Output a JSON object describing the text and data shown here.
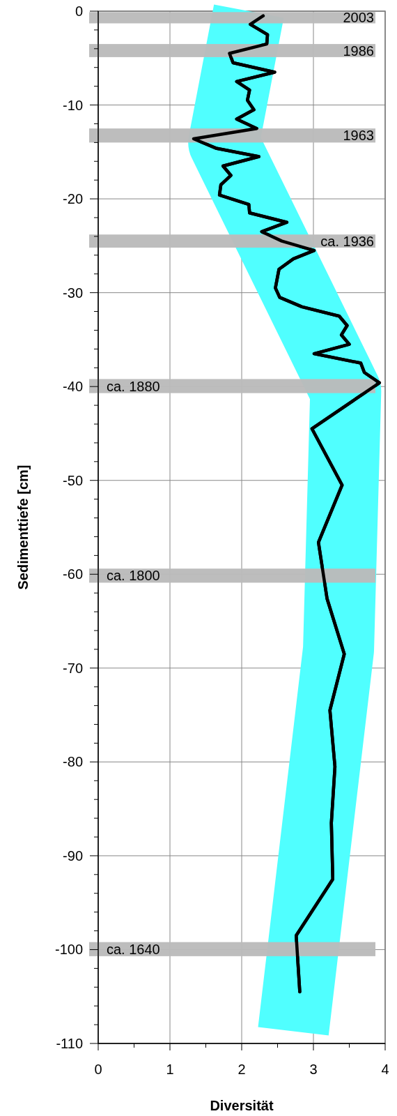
{
  "chart_data": {
    "type": "line",
    "xlabel": "Diversität",
    "ylabel": "Sedimenttiefe [cm]",
    "xlim": [
      0,
      4
    ],
    "xticks": [
      0,
      {
        "value": 0.5,
        "label": null
      },
      1,
      {
        "value": 1.5,
        "label": null
      },
      2,
      {
        "value": 2.5,
        "label": null
      },
      3,
      {
        "value": 3.5,
        "label": null
      },
      4
    ],
    "ylim": [
      -110,
      0
    ],
    "yticks": [
      -110,
      {
        "value": -108,
        "label": null
      },
      {
        "value": -106,
        "label": null
      },
      {
        "value": -104,
        "label": null
      },
      {
        "value": -102,
        "label": null
      },
      -100,
      {
        "value": -98,
        "label": null
      },
      {
        "value": -96,
        "label": null
      },
      {
        "value": -94,
        "label": null
      },
      {
        "value": -92,
        "label": null
      },
      -90,
      {
        "value": -88,
        "label": null
      },
      {
        "value": -86,
        "label": null
      },
      {
        "value": -84,
        "label": null
      },
      {
        "value": -82,
        "label": null
      },
      -80,
      {
        "value": -78,
        "label": null
      },
      {
        "value": -76,
        "label": null
      },
      {
        "value": -74,
        "label": null
      },
      {
        "value": -72,
        "label": null
      },
      -70,
      {
        "value": -68,
        "label": null
      },
      {
        "value": -66,
        "label": null
      },
      {
        "value": -64,
        "label": null
      },
      {
        "value": -62,
        "label": null
      },
      -60,
      {
        "value": -58,
        "label": null
      },
      {
        "value": -56,
        "label": null
      },
      {
        "value": -54,
        "label": null
      },
      {
        "value": -52,
        "label": null
      },
      -50,
      {
        "value": -48,
        "label": null
      },
      {
        "value": -46,
        "label": null
      },
      {
        "value": -44,
        "label": null
      },
      {
        "value": -42,
        "label": null
      },
      -40,
      {
        "value": -38,
        "label": null
      },
      {
        "value": -36,
        "label": null
      },
      {
        "value": -34,
        "label": null
      },
      {
        "value": -32,
        "label": null
      },
      -30,
      {
        "value": -28,
        "label": null
      },
      {
        "value": -26,
        "label": null
      },
      {
        "value": -24,
        "label": null
      },
      {
        "value": -22,
        "label": null
      },
      -20,
      {
        "value": -18,
        "label": null
      },
      {
        "value": -16,
        "label": null
      },
      {
        "value": -14,
        "label": null
      },
      {
        "value": -12,
        "label": null
      },
      -10,
      {
        "value": -8,
        "label": null
      },
      {
        "value": -6,
        "label": null
      },
      {
        "value": -4,
        "label": null
      },
      {
        "value": -2,
        "label": null
      },
      0
    ],
    "grid": true,
    "line_style": "solid",
    "marker": "none",
    "series": [
      {
        "color": "#50ffff",
        "x": [
          2.1,
          1.75,
          3.45,
          3.35,
          2.72
        ],
        "values": [
          0,
          -14,
          -40.5,
          -68,
          -108.7
        ]
      },
      {
        "color": "#000000",
        "x": [
          2.3,
          2.12,
          2.36,
          2.35,
          1.83,
          1.88,
          2.46,
          1.93,
          2.11,
          2.08,
          2.17,
          1.93,
          2.21,
          1.33,
          1.64,
          2.24,
          1.74,
          1.85,
          1.71,
          1.69,
          2.1,
          2.11,
          2.63,
          2.28,
          2.56,
          3.01,
          2.72,
          2.52,
          2.47,
          2.53,
          2.84,
          3.36,
          3.47,
          3.39,
          3.5,
          3.01,
          3.66,
          3.71,
          3.92,
          2.98,
          3.4,
          3.07,
          3.19,
          3.43,
          3.23,
          3.3,
          3.25,
          3.27,
          2.76,
          2.81
        ],
        "values": [
          -0.5,
          -1.4,
          -2.5,
          -3.5,
          -4.5,
          -5.5,
          -6.5,
          -7.5,
          -8.4,
          -9.5,
          -10.5,
          -11.5,
          -12.5,
          -13.6,
          -14.6,
          -15.5,
          -16.5,
          -17.5,
          -18.5,
          -19.6,
          -20.6,
          -21.5,
          -22.5,
          -23.5,
          -24.5,
          -25.5,
          -26.4,
          -27.5,
          -29.5,
          -30.5,
          -31.5,
          -32.5,
          -33.5,
          -34.5,
          -35.5,
          -36.5,
          -37.5,
          -38.5,
          -39.6,
          -44.5,
          -50.5,
          -56.6,
          -62.6,
          -68.5,
          -74.5,
          -80.5,
          -86.5,
          -92.5,
          -98.5,
          -104.5
        ]
      }
    ],
    "bands": [
      {
        "axis": "y",
        "from": -1.3,
        "to": -0.1,
        "label": "2003",
        "color": "#bbbbbb"
      },
      {
        "axis": "y",
        "from": -4.9,
        "to": -3.5,
        "label": "1986",
        "color": "#bbbbbb"
      },
      {
        "axis": "y",
        "from": -14,
        "to": -12.5,
        "label": "1963",
        "color": "#bbbbbb"
      },
      {
        "axis": "y",
        "from": -25.2,
        "to": -23.8,
        "label": "ca. 1936",
        "color": "#bbbbbb"
      },
      {
        "axis": "y",
        "from": -40.7,
        "to": -39.2,
        "label": "ca. 1880",
        "color": "#bbbbbb"
      },
      {
        "axis": "y",
        "from": -60.9,
        "to": -59.4,
        "label": "ca. 1800",
        "color": "#bbbbbb"
      },
      {
        "axis": "y",
        "from": -100.7,
        "to": -99.2,
        "label": "ca. 1640",
        "color": "#bbbbbb"
      }
    ]
  }
}
